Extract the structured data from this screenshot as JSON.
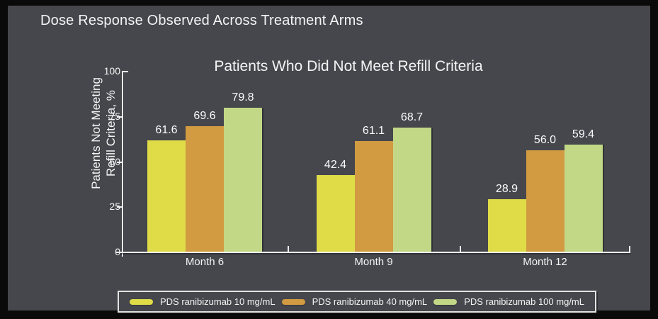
{
  "title": "Dose Response Observed Across Treatment Arms",
  "chart_data": {
    "type": "bar",
    "title": "Patients Who Did Not Meet Refill Criteria",
    "ylabel": "Patients Not Meeting Refill Criteria, %",
    "ylabel_line1": "Patients Not Meeting",
    "ylabel_line2": "Refill Criteria, %",
    "categories": [
      "Month 6",
      "Month 9",
      "Month 12"
    ],
    "series": [
      {
        "name": "PDS ranibizumab 10 mg/mL",
        "color": "#dfdc48",
        "values": [
          61.6,
          42.4,
          28.9
        ]
      },
      {
        "name": "PDS ranibizumab 40 mg/mL",
        "color": "#d29b41",
        "values": [
          69.6,
          61.1,
          56.0
        ]
      },
      {
        "name": "PDS ranibizumab 100 mg/mL",
        "color": "#c3d886",
        "values": [
          79.8,
          68.7,
          59.4
        ]
      }
    ],
    "ylim": [
      0,
      100
    ],
    "yticks": [
      0,
      25,
      50,
      75,
      100
    ],
    "legend_position": "bottom",
    "grid": false
  },
  "colors": {
    "background": "#45474d",
    "frame": "#0a0a0a",
    "text": "#f4f4f4",
    "axis": "#efefef"
  }
}
